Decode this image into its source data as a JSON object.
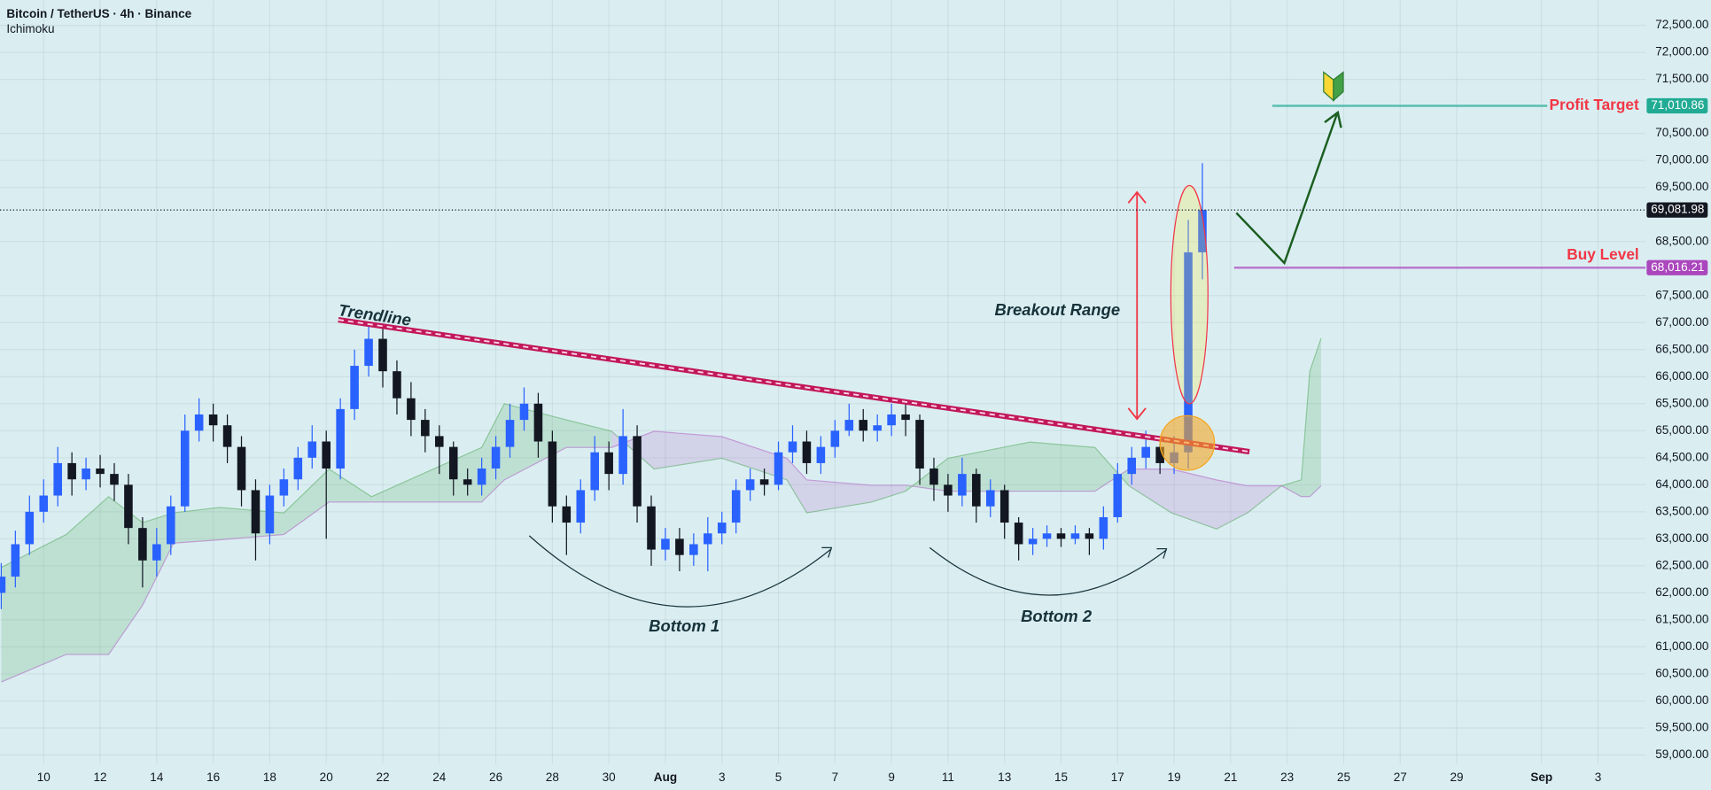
{
  "header": {
    "title": "Bitcoin / TetherUS · 4h · Binance",
    "indicator": "Ichimoku"
  },
  "chart_data": {
    "type": "candlestick",
    "x": [
      8.5,
      9,
      9.5,
      10,
      10.5,
      11,
      11.5,
      12,
      12.5,
      13,
      13.5,
      14,
      14.5,
      15,
      15.5,
      16,
      16.5,
      17,
      17.5,
      18,
      18.5,
      19,
      19.5,
      20,
      20.5,
      21,
      21.5,
      22,
      22.5,
      23,
      23.5,
      24,
      24.5,
      25,
      25.5,
      26,
      26.5,
      27,
      27.5,
      28,
      28.5,
      29,
      29.5,
      30,
      30.5,
      31,
      31.5,
      32,
      32.5,
      33,
      33.5,
      34,
      34.5,
      35,
      35.5,
      36,
      36.5,
      37,
      37.5,
      38,
      38.5,
      39,
      39.5,
      40,
      40.5,
      41,
      41.5,
      42,
      42.5,
      43,
      43.5,
      44,
      44.5,
      45,
      45.5,
      46,
      46.5,
      47,
      47.5,
      48,
      48.5,
      49,
      49.5,
      50,
      50.5,
      51
    ],
    "open": [
      62000,
      62300,
      62900,
      63500,
      63800,
      64400,
      64100,
      64300,
      64200,
      64000,
      63200,
      62600,
      62900,
      63600,
      65000,
      65300,
      65100,
      64700,
      63900,
      63100,
      63800,
      64100,
      64500,
      64800,
      64300,
      65400,
      66200,
      66700,
      66100,
      65600,
      65200,
      64900,
      64700,
      64100,
      64000,
      64300,
      64700,
      65200,
      65500,
      64800,
      63600,
      63300,
      63900,
      64600,
      64200,
      64900,
      63600,
      62800,
      63000,
      62700,
      62900,
      63100,
      63300,
      63900,
      64100,
      64000,
      64600,
      64800,
      64400,
      64700,
      65000,
      65200,
      65000,
      65100,
      65300,
      65200,
      64300,
      64000,
      63800,
      64200,
      63600,
      63900,
      63300,
      62900,
      63000,
      63100,
      63000,
      63100,
      63000,
      63400,
      64200,
      64500,
      64700,
      64400,
      64600,
      68300
    ],
    "high": [
      62550,
      63150,
      63800,
      64100,
      64700,
      64600,
      64500,
      64550,
      64400,
      64200,
      63400,
      63200,
      63800,
      65300,
      65600,
      65500,
      65300,
      64900,
      64100,
      64000,
      64300,
      64700,
      65100,
      65000,
      65600,
      66500,
      67000,
      66900,
      66300,
      65900,
      65400,
      65100,
      64800,
      64300,
      64500,
      64900,
      65500,
      65800,
      65700,
      65000,
      63800,
      64100,
      64900,
      64800,
      65400,
      65100,
      63800,
      63200,
      63200,
      63100,
      63400,
      63500,
      64100,
      64300,
      64300,
      64800,
      65100,
      65000,
      64900,
      65200,
      65500,
      65400,
      65300,
      65500,
      65500,
      65300,
      64500,
      64200,
      64500,
      64300,
      64100,
      64000,
      63400,
      63200,
      63250,
      63200,
      63250,
      63200,
      63600,
      64400,
      64700,
      65000,
      64800,
      64900,
      68900,
      69950
    ],
    "low": [
      61700,
      62100,
      62700,
      63300,
      63600,
      63800,
      63900,
      63950,
      63700,
      62900,
      62100,
      62300,
      62700,
      63500,
      64800,
      64800,
      64400,
      63600,
      62600,
      62900,
      63600,
      63900,
      64300,
      63000,
      64100,
      65200,
      66000,
      65800,
      65300,
      64900,
      64600,
      64200,
      63800,
      63800,
      63800,
      64100,
      64500,
      65000,
      64500,
      63300,
      62700,
      63100,
      63700,
      63900,
      64000,
      63300,
      62500,
      62600,
      62400,
      62500,
      62400,
      62900,
      63100,
      63700,
      63800,
      63900,
      64400,
      64200,
      64200,
      64500,
      64900,
      64800,
      64800,
      64900,
      64900,
      64000,
      63700,
      63500,
      63600,
      63300,
      63400,
      63000,
      62600,
      62700,
      62850,
      62850,
      62900,
      62700,
      62800,
      63300,
      64000,
      64300,
      64200,
      64200,
      64300,
      67800
    ],
    "close": [
      62300,
      62900,
      63500,
      63800,
      64400,
      64100,
      64300,
      64200,
      64000,
      63200,
      62600,
      62900,
      63600,
      65000,
      65300,
      65100,
      64700,
      63900,
      63100,
      63800,
      64100,
      64500,
      64800,
      64300,
      65400,
      66200,
      66700,
      66100,
      65600,
      65200,
      64900,
      64700,
      64100,
      64000,
      64300,
      64700,
      65200,
      65500,
      64800,
      63600,
      63300,
      63900,
      64600,
      64200,
      64900,
      63600,
      62800,
      63000,
      62700,
      62900,
      63100,
      63300,
      63900,
      64100,
      64000,
      64600,
      64800,
      64400,
      64700,
      65000,
      65200,
      65000,
      65100,
      65300,
      65200,
      64300,
      64000,
      63800,
      64200,
      63600,
      63900,
      63300,
      62900,
      63000,
      63100,
      63000,
      63100,
      63000,
      63400,
      64200,
      64500,
      64700,
      64400,
      64600,
      68300,
      69081.98
    ],
    "up_color": "#2962ff",
    "down_color": "#131722",
    "ichimoku": {
      "x": [
        8.5,
        10.8,
        12.3,
        13.5,
        14.6,
        16.2,
        18.5,
        20.1,
        21.6,
        25.5,
        26.3,
        28.5,
        30.1,
        31.6,
        34,
        36.3,
        37,
        39.3,
        40.5,
        42,
        44.9,
        47.2,
        48.4,
        49.9,
        51.5,
        52.6,
        53.8,
        54.5,
        54.8,
        55.2
      ],
      "span_a": [
        62470,
        63080,
        63780,
        63300,
        63480,
        63580,
        63480,
        64290,
        63780,
        64690,
        65500,
        65200,
        64990,
        64290,
        64490,
        64090,
        63480,
        63680,
        63880,
        64490,
        64790,
        64690,
        63980,
        63480,
        63180,
        63480,
        63980,
        64090,
        66100,
        66710
      ],
      "span_b": [
        60350,
        60860,
        60860,
        61770,
        62920,
        62980,
        63080,
        63680,
        63680,
        63680,
        64090,
        64690,
        64690,
        64990,
        64890,
        64490,
        64090,
        63990,
        63990,
        63880,
        63880,
        63880,
        64290,
        64290,
        64090,
        63980,
        63980,
        63780,
        63780,
        63980
      ],
      "bull_color": "#43a047",
      "bear_color": "#ab47bc"
    },
    "xlim": [
      8.456,
      66.68
    ],
    "xticks": [
      10,
      12,
      14,
      16,
      18,
      20,
      22,
      24,
      26,
      28,
      30,
      {
        "value": 32,
        "label": "Aug"
      },
      {
        "value": 34,
        "label": "3"
      },
      {
        "value": 36,
        "label": "5"
      },
      {
        "value": 38,
        "label": "7"
      },
      {
        "value": 40,
        "label": "9"
      },
      {
        "value": 42,
        "label": "11"
      },
      {
        "value": 44,
        "label": "13"
      },
      {
        "value": 46,
        "label": "15"
      },
      {
        "value": 48,
        "label": "17"
      },
      {
        "value": 50,
        "label": "19"
      },
      {
        "value": 52,
        "label": "21"
      },
      {
        "value": 54,
        "label": "23"
      },
      {
        "value": 56,
        "label": "25"
      },
      {
        "value": 58,
        "label": "27"
      },
      {
        "value": 60,
        "label": "29"
      },
      {
        "value": 63,
        "label": "Sep"
      },
      {
        "value": 65,
        "label": "3"
      }
    ],
    "ylim": [
      58840,
      72965
    ],
    "yticks": [
      {
        "value": 72500,
        "label": "72,500.00"
      },
      {
        "value": 72000,
        "label": "72,000.00"
      },
      {
        "value": 71500,
        "label": "71,500.00"
      },
      {
        "value": 70500,
        "label": "70,500.00"
      },
      {
        "value": 70000,
        "label": "70,000.00"
      },
      {
        "value": 69500,
        "label": "69,500.00"
      },
      {
        "value": 68500,
        "label": "68,500.00"
      },
      {
        "value": 67500,
        "label": "67,500.00"
      },
      {
        "value": 67000,
        "label": "67,000.00"
      },
      {
        "value": 66500,
        "label": "66,500.00"
      },
      {
        "value": 66000,
        "label": "66,000.00"
      },
      {
        "value": 65500,
        "label": "65,500.00"
      },
      {
        "value": 65000,
        "label": "65,000.00"
      },
      {
        "value": 64500,
        "label": "64,500.00"
      },
      {
        "value": 64000,
        "label": "64,000.00"
      },
      {
        "value": 63500,
        "label": "63,500.00"
      },
      {
        "value": 63000,
        "label": "63,000.00"
      },
      {
        "value": 62500,
        "label": "62,500.00"
      },
      {
        "value": 62000,
        "label": "62,000.00"
      },
      {
        "value": 61500,
        "label": "61,500.00"
      },
      {
        "value": 61000,
        "label": "61,000.00"
      },
      {
        "value": 60500,
        "label": "60,500.00"
      },
      {
        "value": 60000,
        "label": "60,000.00"
      },
      {
        "value": 59500,
        "label": "59,500.00"
      },
      {
        "value": 59000,
        "label": "59,000.00"
      }
    ],
    "grid": true,
    "current_price": {
      "value": 69081.98,
      "label": "69,081.98",
      "color": "#131722"
    },
    "levels": [
      {
        "name": "Profit Target",
        "value": 71010.86,
        "label": "71,010.86",
        "color": "#22ab94"
      },
      {
        "name": "Buy Level",
        "value": 68016.21,
        "label": "68,016.21",
        "color": "#ab47bc"
      }
    ],
    "annotations": [
      "Trendline",
      "Breakout Range",
      "Bottom 1",
      "Bottom 2"
    ]
  }
}
